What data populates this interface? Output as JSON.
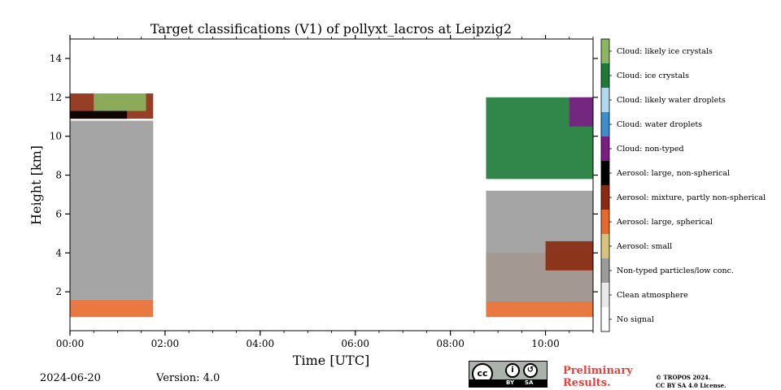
{
  "chart_data": {
    "type": "heatmap",
    "title": "Target classifications (V1) of pollyxt_lacros at Leipzig2",
    "xlabel": "Time [UTC]",
    "ylabel": "Height [km]",
    "xlim": [
      "00:00",
      "11:00"
    ],
    "ylim": [
      0.0,
      15.0
    ],
    "x_ticks": [
      "00:00",
      "02:00",
      "04:00",
      "06:00",
      "08:00",
      "10:00"
    ],
    "y_ticks": [
      "2",
      "4",
      "6",
      "8",
      "10",
      "12",
      "14"
    ],
    "legend_placement": "right colorbar",
    "classes": [
      {
        "name": "Cloud: likely ice crystals",
        "color": "#8ab760"
      },
      {
        "name": "Cloud: ice crystals",
        "color": "#1b7a35"
      },
      {
        "name": "Cloud: likely water droplets",
        "color": "#b1d8ee"
      },
      {
        "name": "Cloud: water droplets",
        "color": "#3b8dcc"
      },
      {
        "name": "Cloud: non-typed",
        "color": "#7b1d84"
      },
      {
        "name": "Aerosol: large, non-spherical",
        "color": "#000000"
      },
      {
        "name": "Aerosol: mixture, partly non-spherical",
        "color": "#8b2a0e"
      },
      {
        "name": "Aerosol: large, spherical",
        "color": "#e8692c"
      },
      {
        "name": "Aerosol: small",
        "color": "#d8c37a"
      },
      {
        "name": "Non-typed particles/low conc.",
        "color": "#9b9b9b"
      },
      {
        "name": "Clean atmosphere",
        "color": "#e9e9e9"
      },
      {
        "name": "No signal",
        "color": "#ffffff"
      }
    ],
    "regions": [
      {
        "class": "Aerosol: large, spherical",
        "t_start": 0.0,
        "t_end": 1.75,
        "h_bottom": 0.7,
        "h_top": 1.6
      },
      {
        "class": "Non-typed particles/low conc.",
        "t_start": 0.0,
        "t_end": 1.75,
        "h_bottom": 1.6,
        "h_top": 10.8
      },
      {
        "class": "Aerosol: mixture, partly non-spherical",
        "t_start": 0.0,
        "t_end": 1.75,
        "h_bottom": 10.9,
        "h_top": 12.2
      },
      {
        "class": "Cloud: likely ice crystals",
        "t_start": 0.5,
        "t_end": 1.6,
        "h_bottom": 11.3,
        "h_top": 12.2
      },
      {
        "class": "Aerosol: large, non-spherical",
        "t_start": 0.0,
        "t_end": 1.2,
        "h_bottom": 10.9,
        "h_top": 11.3
      },
      {
        "class": "Aerosol: large, spherical",
        "t_start": 8.75,
        "t_end": 11.0,
        "h_bottom": 0.7,
        "h_top": 4.0
      },
      {
        "class": "Non-typed particles/low conc.",
        "t_start": 8.75,
        "t_end": 11.0,
        "h_bottom": 1.5,
        "h_top": 7.2
      },
      {
        "class": "Aerosol: mixture, partly non-spherical",
        "t_start": 10.0,
        "t_end": 11.0,
        "h_bottom": 3.1,
        "h_top": 4.6
      },
      {
        "class": "Cloud: ice crystals",
        "t_start": 8.75,
        "t_end": 11.0,
        "h_bottom": 7.8,
        "h_top": 12.0
      },
      {
        "class": "Cloud: non-typed",
        "t_start": 10.5,
        "t_end": 11.0,
        "h_bottom": 10.5,
        "h_top": 12.0
      }
    ]
  },
  "footer": {
    "date": "2024-06-20",
    "version": "Version: 4.0",
    "prelim_line1": "Preliminary",
    "prelim_line2": "Results.",
    "copyright_line1": "© TROPOS 2024.",
    "copyright_line2": "CC BY SA 4.0 License.",
    "cc_label": "cc",
    "by_label": "BY",
    "sa_label": "SA"
  }
}
